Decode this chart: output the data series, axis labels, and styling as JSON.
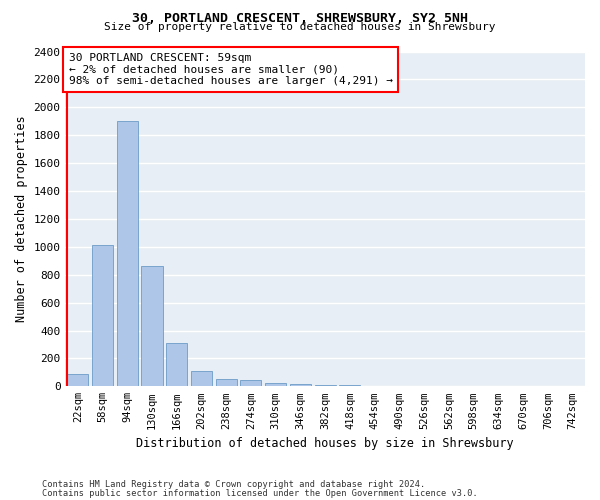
{
  "title": "30, PORTLAND CRESCENT, SHREWSBURY, SY2 5NH",
  "subtitle": "Size of property relative to detached houses in Shrewsbury",
  "xlabel": "Distribution of detached houses by size in Shrewsbury",
  "ylabel": "Number of detached properties",
  "footer_line1": "Contains HM Land Registry data © Crown copyright and database right 2024.",
  "footer_line2": "Contains public sector information licensed under the Open Government Licence v3.0.",
  "bin_labels": [
    "22sqm",
    "58sqm",
    "94sqm",
    "130sqm",
    "166sqm",
    "202sqm",
    "238sqm",
    "274sqm",
    "310sqm",
    "346sqm",
    "382sqm",
    "418sqm",
    "454sqm",
    "490sqm",
    "526sqm",
    "562sqm",
    "598sqm",
    "634sqm",
    "670sqm",
    "706sqm",
    "742sqm"
  ],
  "bin_values": [
    90,
    1010,
    1900,
    860,
    310,
    110,
    55,
    42,
    27,
    18,
    12,
    10,
    5,
    3,
    2,
    2,
    1,
    1,
    1,
    1,
    0
  ],
  "bar_color": "#aec6e8",
  "bar_edge_color": "#5a8fc0",
  "background_color": "#e8eef5",
  "grid_color": "#ffffff",
  "annotation_text": "30 PORTLAND CRESCENT: 59sqm\n← 2% of detached houses are smaller (90)\n98% of semi-detached houses are larger (4,291) →",
  "property_line_color": "red",
  "ylim": [
    0,
    2400
  ],
  "yticks": [
    0,
    200,
    400,
    600,
    800,
    1000,
    1200,
    1400,
    1600,
    1800,
    2000,
    2200,
    2400
  ]
}
